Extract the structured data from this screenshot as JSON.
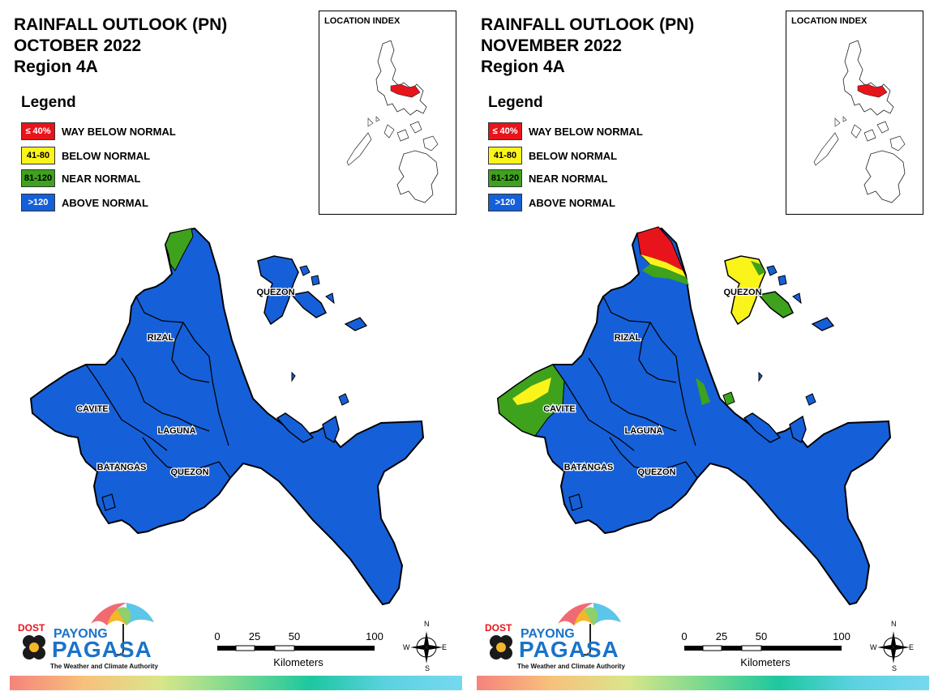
{
  "colors": {
    "way_below": "#e8141b",
    "below": "#fbf41b",
    "near": "#3ea21d",
    "above": "#1560d9",
    "border": "#000000"
  },
  "legend": {
    "title": "Legend",
    "items": [
      {
        "code": "≤ 40%",
        "label": "WAY BELOW NORMAL",
        "color": "#e8141b",
        "text_color": "#ffffff"
      },
      {
        "code": "41-80",
        "label": "BELOW NORMAL",
        "color": "#fbf41b",
        "text_color": "#000000"
      },
      {
        "code": "81-120",
        "label": "NEAR NORMAL",
        "color": "#3ea21d",
        "text_color": "#000000"
      },
      {
        "code": ">120",
        "label": "ABOVE NORMAL",
        "color": "#1560d9",
        "text_color": "#ffffff"
      }
    ]
  },
  "panels": [
    {
      "title_line1": "RAINFALL OUTLOOK (PN)",
      "title_line2": "OCTOBER 2022",
      "title_line3": "Region 4A",
      "inset_title": "LOCATION INDEX",
      "labels": {
        "rizal": "RIZAL",
        "cavite": "CAVITE",
        "laguna": "LAGUNA",
        "batangas": "BATANGAS",
        "quezon_south": "QUEZON",
        "quezon_north": "QUEZON"
      }
    },
    {
      "title_line1": "RAINFALL OUTLOOK (PN)",
      "title_line2": "NOVEMBER 2022",
      "title_line3": "Region 4A",
      "inset_title": "LOCATION INDEX",
      "labels": {
        "rizal": "RIZAL",
        "cavite": "CAVITE",
        "laguna": "LAGUNA",
        "batangas": "BATANGAS",
        "quezon_south": "QUEZON",
        "quezon_north": "QUEZON"
      }
    }
  ],
  "logo": {
    "dost": "DOST",
    "payong": "PAYONG",
    "pagasa": "PAGASA",
    "tagline": "The Weather and Climate Authority"
  },
  "scale": {
    "ticks": [
      "0",
      "25",
      "50",
      "100"
    ],
    "unit": "Kilometers"
  },
  "compass": {
    "n": "N",
    "s": "S",
    "e": "E",
    "w": "W"
  }
}
